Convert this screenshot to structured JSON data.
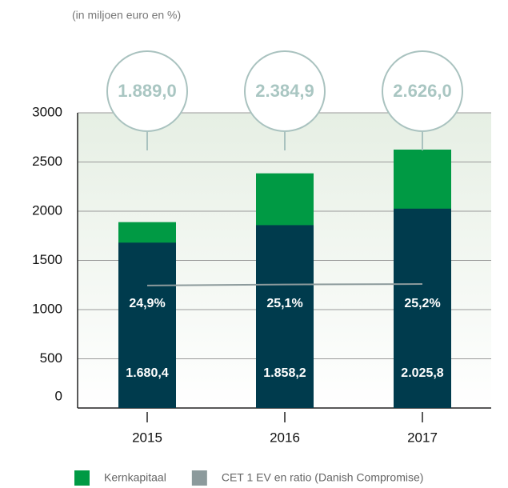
{
  "chart_data": {
    "type": "bar",
    "subtitle": "(in miljoen euro en %)",
    "categories": [
      "2015",
      "2016",
      "2017"
    ],
    "series": [
      {
        "name": "Kernkapitaal",
        "color": "#009a44",
        "values": [
          1889.0,
          2384.9,
          2626.0
        ],
        "value_labels": [
          "1.889,0",
          "2.384,9",
          "2.626,0"
        ]
      },
      {
        "color": "#003b4d",
        "values": [
          1680.4,
          1858.2,
          2025.8
        ],
        "value_labels": [
          "1.680,4",
          "1.858,2",
          "2.025,8"
        ]
      },
      {
        "name": "CET 1 EV en ratio (Danish Compromise)",
        "type": "line",
        "axis": "y2",
        "color": "#8c9a9c",
        "values": [
          24.9,
          25.1,
          25.2
        ],
        "value_labels": [
          "24,9%",
          "25,1%",
          "25,2%"
        ]
      }
    ],
    "ylim": [
      0,
      3000
    ],
    "yticks": [
      0,
      500,
      1000,
      1500,
      2000,
      2500,
      3000
    ],
    "y2lim": [
      0,
      60
    ],
    "grid": true
  }
}
